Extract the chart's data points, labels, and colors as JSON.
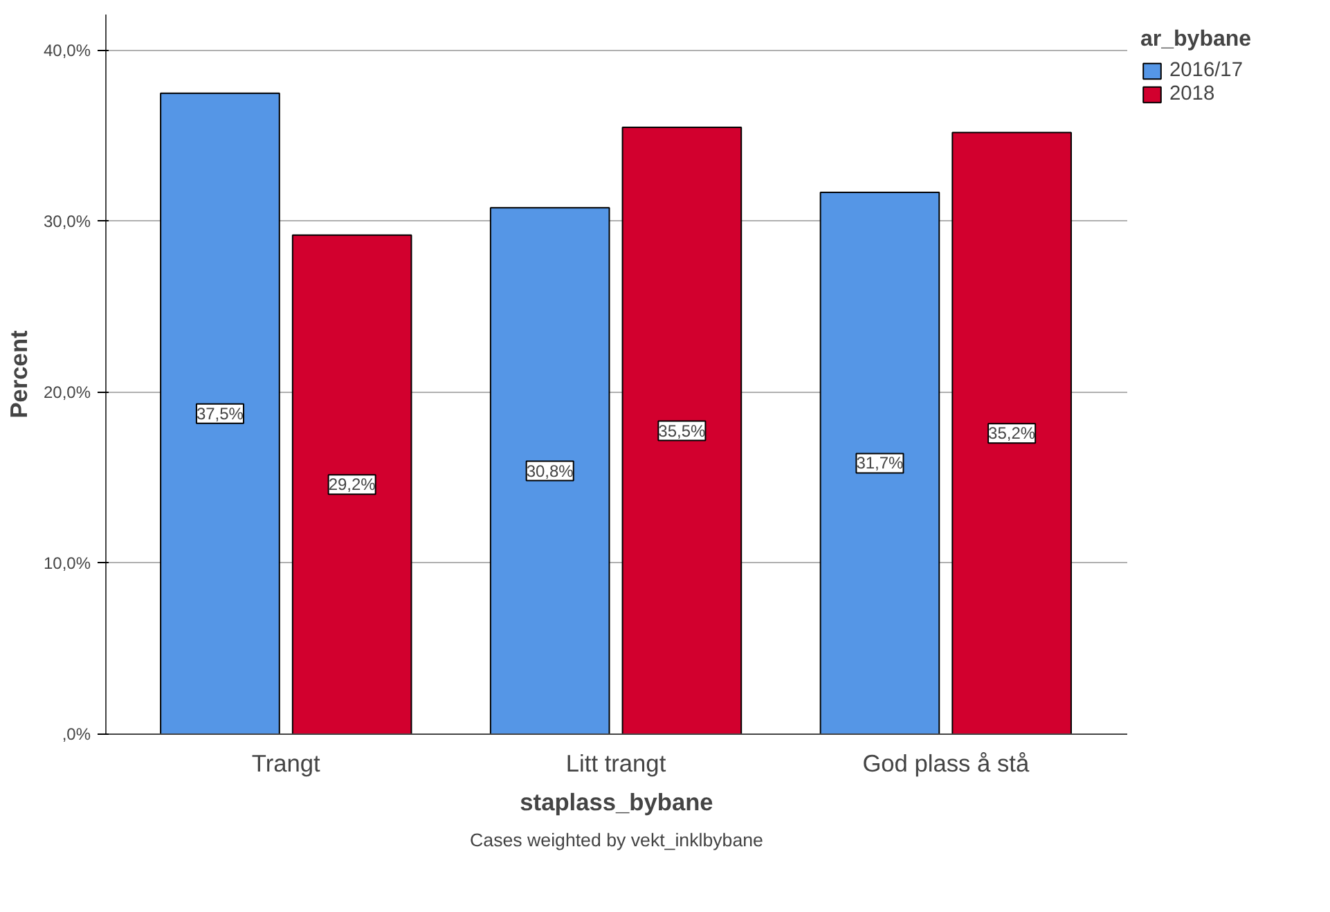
{
  "chart_data": {
    "type": "bar",
    "categories": [
      "Trangt",
      "Litt trangt",
      "God plass å stå"
    ],
    "xlabel": "staplass_bybane",
    "ylabel": "Percent",
    "legend_title": "ar_bybane",
    "legend": "top right",
    "grid": "y",
    "ylim": [
      0,
      42.1
    ],
    "yticks": [
      {
        "value": 0,
        "label": ",0%"
      },
      {
        "value": 10,
        "label": "10,0%"
      },
      {
        "value": 20,
        "label": "20,0%"
      },
      {
        "value": 30,
        "label": "30,0%"
      },
      {
        "value": 40,
        "label": "40,0%"
      }
    ],
    "series": [
      {
        "name": "2016/17",
        "color": "#5596e6",
        "values": [
          37.5,
          30.8,
          31.7
        ],
        "value_labels": [
          "37,5%",
          "30,8%",
          "31,7%"
        ]
      },
      {
        "name": "2018",
        "color": "#d2002e",
        "values": [
          29.2,
          35.5,
          35.2
        ],
        "value_labels": [
          "29,2%",
          "35,5%",
          "35,2%"
        ]
      }
    ],
    "annotations": [
      "Cases weighted by vekt_inklbybane"
    ]
  }
}
